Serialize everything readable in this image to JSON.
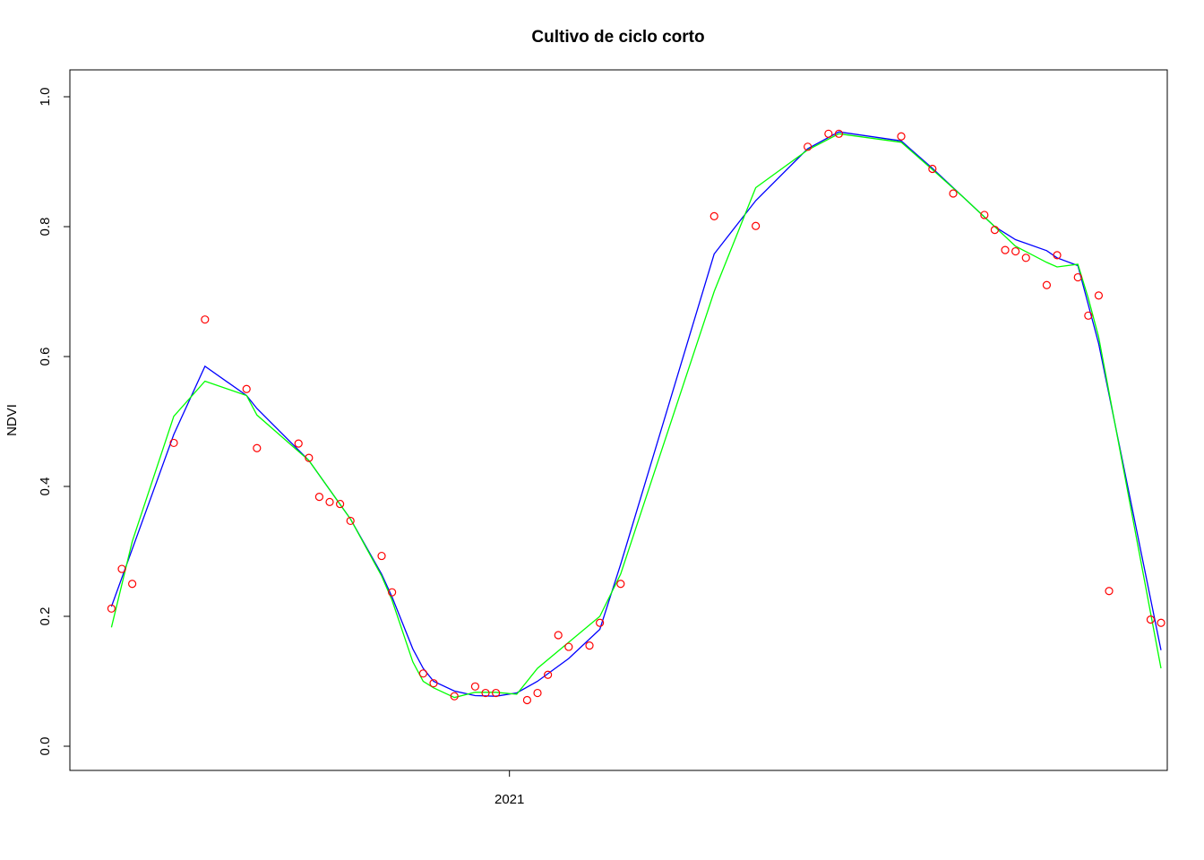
{
  "chart_data": {
    "type": "scatter",
    "title": "Cultivo de ciclo corto",
    "xlabel": "",
    "ylabel": "NDVI",
    "ylim": [
      0.0,
      1.0
    ],
    "yticks": [
      "0.0",
      "0.2",
      "0.4",
      "0.6",
      "0.8",
      "1.0"
    ],
    "xticks": [
      {
        "label": "2021",
        "x": 2021.0
      }
    ],
    "xlim": [
      2020.577,
      2021.633
    ],
    "grid": false,
    "legend": "none",
    "colors": {
      "points": "#ff0000",
      "smooth_a": "#0000ff",
      "smooth_b": "#00ff00",
      "axes": "#000000"
    },
    "series": [
      {
        "kind": "points",
        "color": "#ff0000",
        "x": [
          2020.617,
          2020.627,
          2020.637,
          2020.677,
          2020.707,
          2020.747,
          2020.757,
          2020.797,
          2020.807,
          2020.817,
          2020.827,
          2020.837,
          2020.847,
          2020.877,
          2020.887,
          2020.917,
          2020.927,
          2020.947,
          2020.967,
          2020.977,
          2020.987,
          2021.017,
          2021.027,
          2021.037,
          2021.047,
          2021.057,
          2021.077,
          2021.087,
          2021.107,
          2021.197,
          2021.237,
          2021.287,
          2021.307,
          2021.317,
          2021.377,
          2021.407,
          2021.427,
          2021.457,
          2021.467,
          2021.477,
          2021.487,
          2021.497,
          2021.517,
          2021.527,
          2021.547,
          2021.557,
          2021.567,
          2021.577,
          2021.617,
          2021.627
        ],
        "y": [
          0.212,
          0.273,
          0.25,
          0.467,
          0.657,
          0.55,
          0.459,
          0.466,
          0.444,
          0.384,
          0.376,
          0.373,
          0.347,
          0.293,
          0.237,
          0.112,
          0.097,
          0.077,
          0.092,
          0.082,
          0.082,
          0.071,
          0.082,
          0.11,
          0.171,
          0.153,
          0.155,
          0.19,
          0.25,
          0.816,
          0.801,
          0.923,
          0.943,
          0.943,
          0.939,
          0.889,
          0.851,
          0.818,
          0.795,
          0.764,
          0.762,
          0.752,
          0.71,
          0.756,
          0.722,
          0.663,
          0.694,
          0.239,
          0.195,
          0.19
        ]
      },
      {
        "kind": "line",
        "color": "#0000ff",
        "x": [
          2020.617,
          2020.677,
          2020.707,
          2020.747,
          2020.757,
          2020.807,
          2020.847,
          2020.877,
          2020.887,
          2020.907,
          2020.917,
          2020.927,
          2020.947,
          2020.967,
          2020.987,
          2021.007,
          2021.027,
          2021.057,
          2021.087,
          2021.107,
          2021.197,
          2021.237,
          2021.287,
          2021.317,
          2021.377,
          2021.407,
          2021.437,
          2021.467,
          2021.487,
          2021.517,
          2021.527,
          2021.547,
          2021.557,
          2021.567,
          2021.627
        ],
        "y": [
          0.215,
          0.48,
          0.585,
          0.54,
          0.52,
          0.44,
          0.35,
          0.265,
          0.23,
          0.15,
          0.12,
          0.1,
          0.085,
          0.078,
          0.077,
          0.082,
          0.1,
          0.135,
          0.18,
          0.28,
          0.758,
          0.84,
          0.92,
          0.946,
          0.932,
          0.89,
          0.845,
          0.8,
          0.78,
          0.763,
          0.752,
          0.74,
          0.68,
          0.62,
          0.148
        ]
      },
      {
        "kind": "line",
        "color": "#00ff00",
        "x": [
          2020.617,
          2020.637,
          2020.677,
          2020.707,
          2020.747,
          2020.757,
          2020.807,
          2020.847,
          2020.877,
          2020.887,
          2020.907,
          2020.917,
          2020.927,
          2020.947,
          2020.967,
          2020.987,
          2021.007,
          2021.027,
          2021.057,
          2021.087,
          2021.107,
          2021.197,
          2021.237,
          2021.287,
          2021.317,
          2021.377,
          2021.407,
          2021.437,
          2021.467,
          2021.487,
          2021.517,
          2021.527,
          2021.547,
          2021.557,
          2021.567,
          2021.627
        ],
        "y": [
          0.183,
          0.315,
          0.508,
          0.562,
          0.54,
          0.51,
          0.44,
          0.35,
          0.262,
          0.225,
          0.13,
          0.1,
          0.09,
          0.075,
          0.083,
          0.083,
          0.08,
          0.12,
          0.16,
          0.2,
          0.265,
          0.7,
          0.86,
          0.918,
          0.943,
          0.93,
          0.888,
          0.845,
          0.8,
          0.77,
          0.745,
          0.738,
          0.742,
          0.69,
          0.63,
          0.12
        ]
      }
    ]
  }
}
